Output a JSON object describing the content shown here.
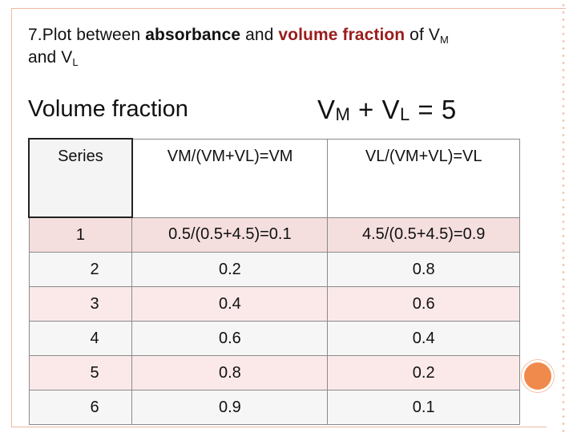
{
  "title": {
    "prefix": "7.Plot between ",
    "absorbance": "absorbance",
    "and_1": " and ",
    "volume_fraction": "volume fraction",
    "of": " of V",
    "sub_m": "M",
    "line2_and": "and V",
    "sub_l": "L"
  },
  "volume_fraction_label": "Volume fraction",
  "sum_equation": {
    "v1": "V",
    "m": "M",
    "plus": " + V",
    "l": "L",
    "equals": " = 5"
  },
  "table": {
    "headers": [
      "Series",
      "VM/(VM+VL)=VM",
      "VL/(VM+VL)=VL"
    ],
    "rows": [
      [
        "1",
        "0.5/(0.5+4.5)=0.1",
        "4.5/(0.5+4.5)=0.9"
      ],
      [
        "2",
        "0.2",
        "0.8"
      ],
      [
        "3",
        "0.4",
        "0.6"
      ],
      [
        "4",
        "0.6",
        "0.4"
      ],
      [
        "5",
        "0.8",
        "0.2"
      ],
      [
        "6",
        "0.9",
        "0.1"
      ]
    ]
  },
  "colors": {
    "accent_red": "#9b1c1c",
    "frame_orange": "#f08a4c",
    "row_pink": "#fbe9e9"
  }
}
